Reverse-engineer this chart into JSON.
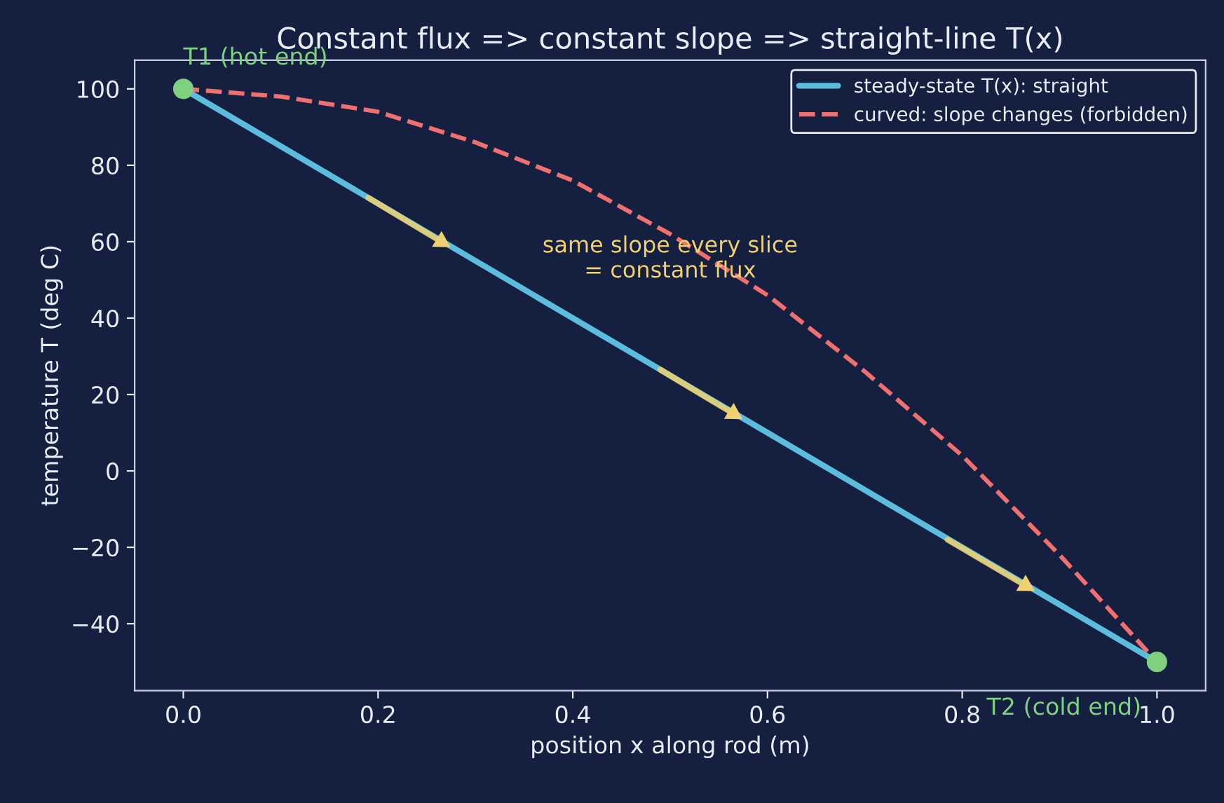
{
  "chart_data": {
    "type": "line",
    "title": "Constant flux => constant slope => straight-line T(x)",
    "xlabel": "position x along rod (m)",
    "ylabel": "temperature T (deg C)",
    "series": [
      {
        "name": "steady-state T(x): straight",
        "color": "#5bbcdd",
        "x": [
          0,
          1
        ],
        "values": [
          100,
          -50
        ],
        "line_style": "solid"
      },
      {
        "name": "curved: slope changes (forbidden)",
        "color": "#f07070",
        "x": [
          0,
          0.1,
          0.2,
          0.3,
          0.4,
          0.5,
          0.6,
          0.7,
          0.8,
          0.9,
          1.0
        ],
        "values": [
          100,
          98,
          94,
          86,
          76,
          62,
          46,
          26,
          4,
          -22,
          -50
        ],
        "line_style": "dashed"
      },
      {
        "type": "line",
        "color": "#f0d070",
        "x": [
          0.19,
          0.265,
          0.27,
          0.49,
          0.565,
          0.57,
          0.785,
          0.865
        ],
        "values": [
          71.5,
          60,
          null,
          26.5,
          15,
          null,
          -18,
          -30
        ],
        "line_style": "solid",
        "marker": "triangle"
      },
      {
        "type": "scatter",
        "color": "#7fd17f",
        "x": [
          0,
          1
        ],
        "values": [
          100,
          -50
        ],
        "marker": "circle"
      }
    ],
    "annotations": [
      {
        "text": "T1 (hot end)",
        "x": 0,
        "y": 100
      },
      {
        "text": "T2 (cold end)",
        "x": 1,
        "y": -50
      },
      "same slope every slice\n= constant flux"
    ],
    "xlim": [
      -0.05,
      1.05
    ],
    "ylim": [
      -57.5,
      107.5
    ],
    "xticks": [
      {
        "value": 0,
        "label": "0.0"
      },
      {
        "value": 0.2,
        "label": "0.2"
      },
      {
        "value": 0.4,
        "label": "0.4"
      },
      {
        "value": 0.6,
        "label": "0.6"
      },
      {
        "value": 0.8,
        "label": "0.8"
      },
      {
        "value": 1,
        "label": "1.0"
      }
    ],
    "yticks": [
      {
        "value": -40,
        "label": "−40"
      },
      {
        "value": -20,
        "label": "−20"
      },
      0,
      20,
      40,
      60,
      80,
      100
    ],
    "legend": "top right"
  }
}
